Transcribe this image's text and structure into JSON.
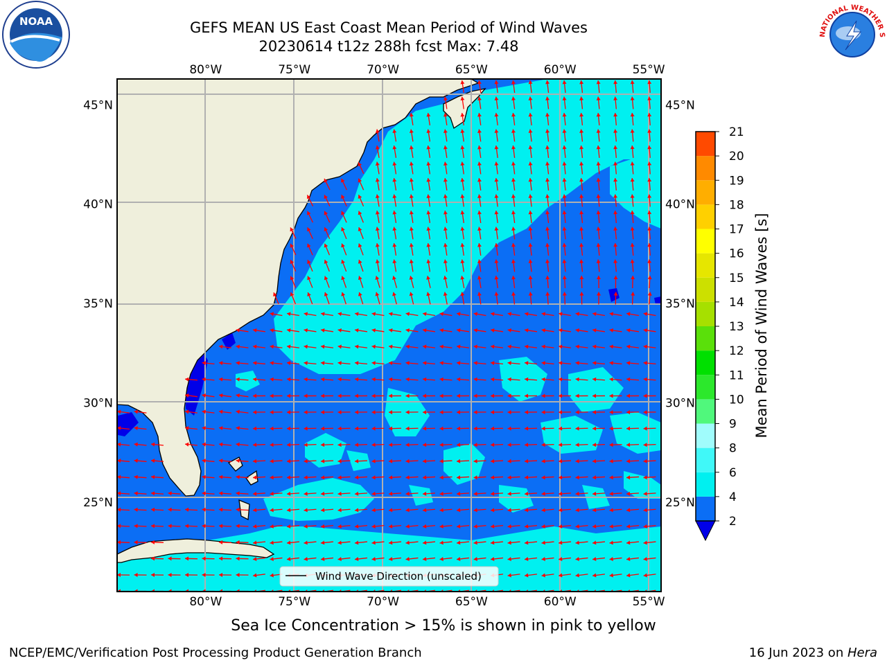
{
  "title": {
    "line1": "GEFS MEAN US East Coast Mean Period of Wind Waves",
    "line2": "20230614 t12z 288h fcst   Max: 7.48"
  },
  "map": {
    "lon_range": [
      -85,
      -54.3
    ],
    "lat_range": [
      20.5,
      46.3
    ],
    "lon_ticks": [
      "80°W",
      "75°W",
      "70°W",
      "65°W",
      "60°W",
      "55°W"
    ],
    "lon_tick_values": [
      -80,
      -75,
      -70,
      -65,
      -60,
      -55
    ],
    "lat_ticks": [
      "45°N",
      "40°N",
      "35°N",
      "30°N",
      "25°N"
    ],
    "lat_tick_values": [
      45,
      40,
      35,
      30,
      25
    ],
    "grid": true,
    "land_color": "#efefdc",
    "arrow_color": "#ff0000",
    "coast_color": "#000000",
    "grid_color": "#b0b0b0"
  },
  "legend": {
    "label": "Wind Wave Direction (unscaled)",
    "placement": "lower-center"
  },
  "colorbar": {
    "label": "Mean Period of Wind Waves [s]",
    "ticks": [
      "2",
      "4",
      "6",
      "8",
      "9",
      "10",
      "11",
      "12",
      "13",
      "14",
      "15",
      "16",
      "17",
      "18",
      "19",
      "20",
      "21"
    ],
    "colors": [
      "#0b6ef5",
      "#00f0f0",
      "#40f8f8",
      "#a0fcfc",
      "#50f87c",
      "#2ce82c",
      "#00e000",
      "#5ae00a",
      "#a6e000",
      "#cce000",
      "#e6e600",
      "#ffff00",
      "#ffd000",
      "#ffae00",
      "#ff8a00",
      "#ff4a00",
      "#ff1a00"
    ],
    "extend_color": "#0000e8",
    "extend": "min"
  },
  "footer": {
    "left": "NCEP/EMC/Verification Post Processing Product Generation Branch",
    "right_date": "16 Jun 2023 on ",
    "right_host": "Hera",
    "sea_ice": "Sea Ice Concentration > 15% is shown in pink to yellow"
  },
  "logos": {
    "left": "noaa-logo",
    "left_text": "NOAA",
    "right": "nws-logo",
    "right_text": "NATIONAL WEATHER SERVICE"
  }
}
